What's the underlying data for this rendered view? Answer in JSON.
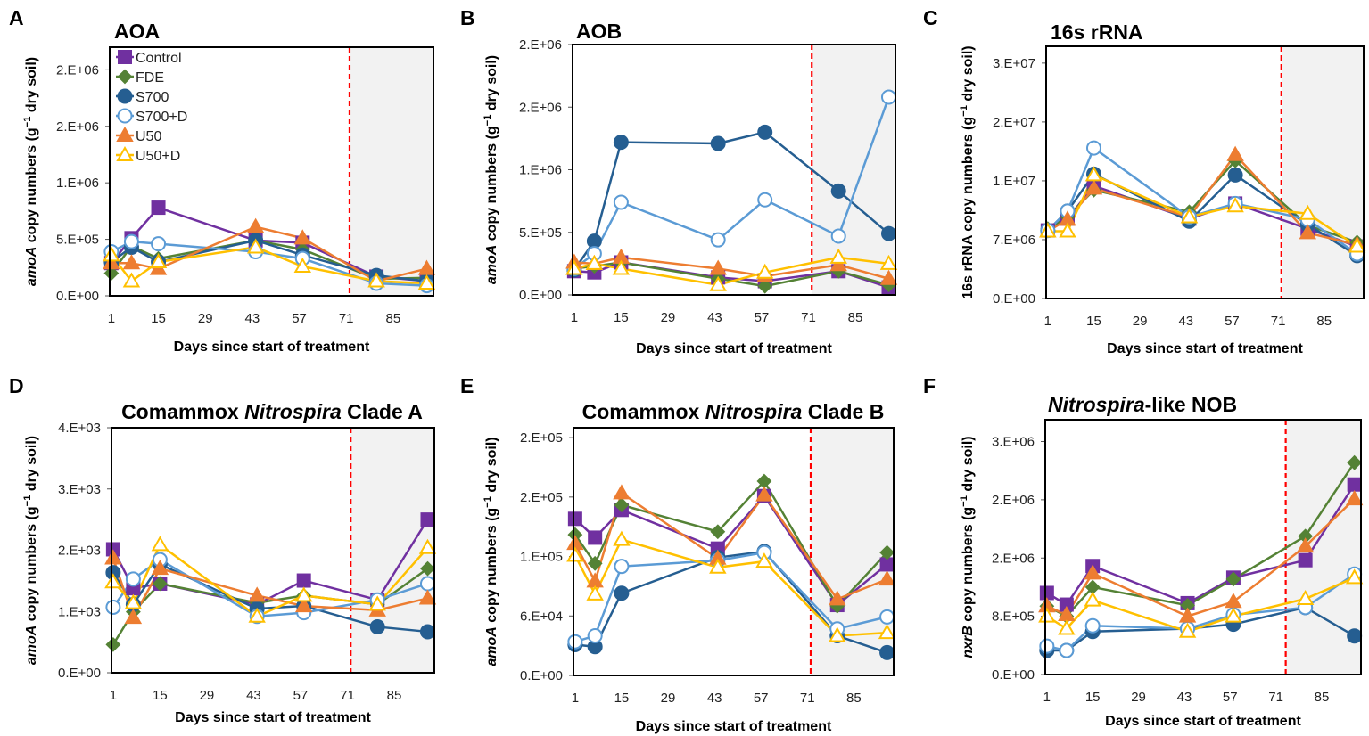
{
  "legend": {
    "placement": "top-left, inside panel A",
    "entries": [
      "Control",
      "FDE",
      "S700",
      "S700+D",
      "U50",
      "U50+D"
    ]
  },
  "series_styles": [
    {
      "name": "Control",
      "color": "#7030A0",
      "marker": "square",
      "filled": true
    },
    {
      "name": "FDE",
      "color": "#548235",
      "marker": "diamond",
      "filled": true
    },
    {
      "name": "S700",
      "color": "#255E91",
      "marker": "circle",
      "filled": true
    },
    {
      "name": "S700+D",
      "color": "#5B9BD5",
      "marker": "circle",
      "filled": false
    },
    {
      "name": "U50",
      "color": "#ED7D31",
      "marker": "triangle",
      "filled": true
    },
    {
      "name": "U50+D",
      "color": "#FFC000",
      "marker": "triangle",
      "filled": false
    }
  ],
  "colors": {
    "treatment_end_line": "#FF0000",
    "post_treatment_shading": "#F2F2F2"
  },
  "chart_data": [
    {
      "type": "line",
      "panel": "A",
      "title": [
        {
          "text": "AOA"
        }
      ],
      "xlabel": "Days since start of treatment",
      "ylabel": [
        {
          "text": "amoA",
          "italic": true
        },
        {
          "text": " copy numbers (g"
        },
        {
          "text": "−1",
          "sup": true
        },
        {
          "text": " dry soil)"
        }
      ],
      "x": [
        1,
        7,
        15,
        44,
        58,
        80,
        95
      ],
      "xticks": [
        1,
        15,
        29,
        43,
        57,
        71,
        85
      ],
      "xlim": [
        0.5,
        97
      ],
      "yticks": [
        0,
        500000,
        1000000,
        1500000,
        2000000
      ],
      "ytick_labels": [
        "0.E+00",
        "5.E+05",
        "1.E+06",
        "2.E+06",
        "2.E+06"
      ],
      "ylim": [
        0,
        2200000
      ],
      "grid": false,
      "treatment_end_day": 72,
      "series": [
        {
          "name": "Control",
          "values": [
            290000,
            510000,
            780000,
            490000,
            470000,
            170000,
            130000
          ]
        },
        {
          "name": "FDE",
          "values": [
            200000,
            440000,
            330000,
            490000,
            410000,
            150000,
            160000
          ]
        },
        {
          "name": "S700",
          "values": [
            300000,
            430000,
            300000,
            490000,
            360000,
            180000,
            130000
          ]
        },
        {
          "name": "S700+D",
          "values": [
            390000,
            480000,
            460000,
            390000,
            330000,
            110000,
            90000
          ]
        },
        {
          "name": "U50",
          "values": [
            290000,
            290000,
            240000,
            610000,
            510000,
            130000,
            240000
          ]
        },
        {
          "name": "U50+D",
          "values": [
            360000,
            130000,
            300000,
            430000,
            260000,
            130000,
            110000
          ]
        }
      ]
    },
    {
      "type": "line",
      "panel": "B",
      "title": [
        {
          "text": "AOB"
        }
      ],
      "xlabel": "Days since start of treatment",
      "ylabel": [
        {
          "text": "amoA",
          "italic": true
        },
        {
          "text": " copy numbers (g"
        },
        {
          "text": "−1",
          "sup": true
        },
        {
          "text": " dry soil)"
        }
      ],
      "x": [
        1,
        7,
        15,
        44,
        58,
        80,
        95
      ],
      "xticks": [
        1,
        15,
        29,
        43,
        57,
        71,
        85
      ],
      "xlim": [
        0.5,
        97
      ],
      "yticks": [
        0,
        500000,
        1000000,
        1500000,
        2000000
      ],
      "ytick_labels": [
        "0.E+00",
        "5.E+05",
        "1.E+06",
        "2.E+06",
        "2.E+06"
      ],
      "ylim": [
        0,
        2000000
      ],
      "grid": false,
      "treatment_end_day": 72,
      "series": [
        {
          "name": "Control",
          "values": [
            190000,
            180000,
            260000,
            140000,
            110000,
            190000,
            60000
          ]
        },
        {
          "name": "FDE",
          "values": [
            210000,
            230000,
            260000,
            130000,
            70000,
            190000,
            80000
          ]
        },
        {
          "name": "S700",
          "values": [
            200000,
            430000,
            1220000,
            1210000,
            1300000,
            830000,
            490000
          ]
        },
        {
          "name": "S700+D",
          "values": [
            210000,
            330000,
            740000,
            440000,
            760000,
            470000,
            1580000
          ]
        },
        {
          "name": "U50",
          "values": [
            260000,
            250000,
            300000,
            210000,
            150000,
            240000,
            130000
          ]
        },
        {
          "name": "U50+D",
          "values": [
            210000,
            250000,
            210000,
            80000,
            180000,
            300000,
            250000
          ]
        }
      ]
    },
    {
      "type": "line",
      "panel": "C",
      "title": [
        {
          "text": "16s rRNA"
        }
      ],
      "xlabel": "Days since start of treatment",
      "ylabel": [
        {
          "text": "16s rRNA copy numbers (g"
        },
        {
          "text": "−1",
          "sup": true
        },
        {
          "text": " dry soil)"
        }
      ],
      "x": [
        1,
        7,
        15,
        44,
        58,
        80,
        95
      ],
      "xticks": [
        1,
        15,
        29,
        43,
        57,
        71,
        85
      ],
      "xlim": [
        0.5,
        97
      ],
      "yticks": [
        0,
        7000000,
        14000000,
        21000000,
        28000000
      ],
      "ytick_labels": [
        "0.E+00",
        "7.E+06",
        "1.E+07",
        "2.E+07",
        "3.E+07"
      ],
      "ylim": [
        0,
        30000000
      ],
      "grid": false,
      "treatment_end_day": 72,
      "series": [
        {
          "name": "Control",
          "values": [
            8100000,
            9500000,
            13400000,
            9500000,
            11300000,
            8300000,
            6200000
          ]
        },
        {
          "name": "FDE",
          "values": [
            8300000,
            9700000,
            12900000,
            10300000,
            16400000,
            8700000,
            6700000
          ]
        },
        {
          "name": "S700",
          "values": [
            8100000,
            10400000,
            14800000,
            9200000,
            14700000,
            8800000,
            5100000
          ]
        },
        {
          "name": "S700+D",
          "values": [
            8100000,
            10400000,
            17900000,
            9700000,
            11300000,
            9400000,
            5300000
          ]
        },
        {
          "name": "U50",
          "values": [
            8000000,
            9400000,
            13100000,
            9700000,
            17100000,
            7800000,
            6400000
          ]
        },
        {
          "name": "U50+D",
          "values": [
            8000000,
            8000000,
            14700000,
            9700000,
            11000000,
            10100000,
            6200000
          ]
        }
      ]
    },
    {
      "type": "line",
      "panel": "D",
      "title": [
        {
          "text": "Comammox "
        },
        {
          "text": "Nitrospira",
          "italic": true
        },
        {
          "text": " Clade A"
        }
      ],
      "xlabel": "Days since start of treatment",
      "ylabel": [
        {
          "text": "amoA",
          "italic": true
        },
        {
          "text": " copy numbers (g"
        },
        {
          "text": "−1",
          "sup": true
        },
        {
          "text": " dry soil)"
        }
      ],
      "x": [
        1,
        7,
        15,
        44,
        58,
        80,
        95
      ],
      "xticks": [
        1,
        15,
        29,
        43,
        57,
        71,
        85
      ],
      "xlim": [
        0.5,
        97
      ],
      "yticks": [
        0,
        1000,
        2000,
        3000,
        4000
      ],
      "ytick_labels": [
        "0.E+00",
        "1.E+03",
        "2.E+03",
        "3.E+03",
        "4.E+03"
      ],
      "ylim": [
        0,
        4000
      ],
      "grid": false,
      "treatment_end_day": 72,
      "series": [
        {
          "name": "Control",
          "values": [
            2015,
            1380,
            1455,
            1115,
            1505,
            1190,
            2500
          ]
        },
        {
          "name": "FDE",
          "values": [
            460,
            995,
            1455,
            1140,
            1260,
            1115,
            1700
          ]
        },
        {
          "name": "S700",
          "values": [
            1635,
            1115,
            1770,
            1045,
            1090,
            750,
            670
          ]
        },
        {
          "name": "S700+D",
          "values": [
            1070,
            1530,
            1845,
            920,
            980,
            1190,
            1455
          ]
        },
        {
          "name": "U50",
          "values": [
            1870,
            900,
            1700,
            1260,
            1090,
            1020,
            1215
          ]
        },
        {
          "name": "U50+D",
          "values": [
            1480,
            1140,
            2090,
            920,
            1260,
            1115,
            2040
          ]
        }
      ]
    },
    {
      "type": "line",
      "panel": "E",
      "title": [
        {
          "text": "Comammox "
        },
        {
          "text": "Nitrospira",
          "italic": true
        },
        {
          "text": " Clade B"
        }
      ],
      "xlabel": "Days since start of treatment",
      "ylabel": [
        {
          "text": "amoA",
          "italic": true
        },
        {
          "text": " copy numbers (g"
        },
        {
          "text": "−1",
          "sup": true
        },
        {
          "text": " dry soil)"
        }
      ],
      "x": [
        1,
        7,
        15,
        44,
        58,
        80,
        95
      ],
      "xticks": [
        1,
        15,
        29,
        43,
        57,
        71,
        85
      ],
      "xlim": [
        0.5,
        97
      ],
      "yticks": [
        0,
        60000,
        120000,
        180000,
        240000
      ],
      "ytick_labels": [
        "0.E+00",
        "6.E+04",
        "1.E+05",
        "2.E+05",
        "2.E+05"
      ],
      "ylim": [
        0,
        250000
      ],
      "grid": false,
      "treatment_end_day": 72,
      "series": [
        {
          "name": "Control",
          "values": [
            158000,
            139000,
            167000,
            128000,
            181000,
            71000,
            112000
          ]
        },
        {
          "name": "FDE",
          "values": [
            142000,
            113000,
            172000,
            145000,
            196000,
            70000,
            124000
          ]
        },
        {
          "name": "S700",
          "values": [
            31000,
            29000,
            83000,
            119000,
            125000,
            40000,
            23000
          ]
        },
        {
          "name": "S700+D",
          "values": [
            34000,
            40000,
            110000,
            116000,
            124000,
            47000,
            59000
          ]
        },
        {
          "name": "U50",
          "values": [
            133000,
            95000,
            184000,
            118000,
            182000,
            77000,
            97000
          ]
        },
        {
          "name": "U50+D",
          "values": [
            121000,
            82000,
            137000,
            109000,
            115000,
            40000,
            43000
          ]
        }
      ]
    },
    {
      "type": "line",
      "panel": "F",
      "title": [
        {
          "text": "Nitrospira",
          "italic": true
        },
        {
          "text": "-like NOB"
        }
      ],
      "xlabel": "Days since start of treatment",
      "ylabel": [
        {
          "text": "nxrB",
          "italic": true
        },
        {
          "text": " copy numbers (g"
        },
        {
          "text": "−1",
          "sup": true
        },
        {
          "text": " dry soil)"
        }
      ],
      "x": [
        1,
        7,
        15,
        44,
        58,
        80,
        95
      ],
      "xticks": [
        1,
        15,
        29,
        43,
        57,
        71,
        85
      ],
      "xlim": [
        0.5,
        97
      ],
      "yticks": [
        0,
        800000,
        1600000,
        2400000,
        3200000
      ],
      "ytick_labels": [
        "0.E+00",
        "8.E+05",
        "2.E+06",
        "2.E+06",
        "3.E+06"
      ],
      "ylim": [
        0,
        3500000
      ],
      "grid": false,
      "treatment_end_day": 74,
      "series": [
        {
          "name": "Control",
          "values": [
            1120000,
            960000,
            1490000,
            980000,
            1330000,
            1570000,
            2610000
          ]
        },
        {
          "name": "FDE",
          "values": [
            940000,
            800000,
            1200000,
            950000,
            1310000,
            1900000,
            2910000
          ]
        },
        {
          "name": "S700",
          "values": [
            330000,
            330000,
            590000,
            630000,
            690000,
            920000,
            530000
          ]
        },
        {
          "name": "S700+D",
          "values": [
            390000,
            330000,
            670000,
            630000,
            820000,
            920000,
            1380000
          ]
        },
        {
          "name": "U50",
          "values": [
            940000,
            820000,
            1390000,
            800000,
            1000000,
            1760000,
            2410000
          ]
        },
        {
          "name": "U50+D",
          "values": [
            800000,
            630000,
            1020000,
            590000,
            800000,
            1040000,
            1330000
          ]
        }
      ]
    }
  ],
  "panel_letters": [
    "A",
    "B",
    "C",
    "D",
    "E",
    "F"
  ]
}
